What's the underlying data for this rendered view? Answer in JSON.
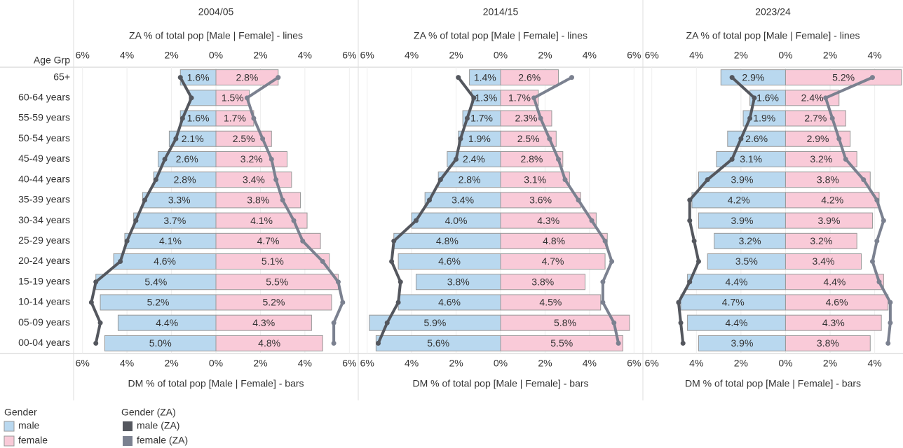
{
  "row_axis": {
    "title": "Age Grp",
    "categories": [
      "65+",
      "60-64 years",
      "55-59 years",
      "50-54 years",
      "45-49 years",
      "40-44 years",
      "35-39 years",
      "30-34 years",
      "25-29 years",
      "20-24 years",
      "15-19 years",
      "10-14 years",
      "05-09 years",
      "00-04 years"
    ]
  },
  "legend": {
    "bars_title": "Gender",
    "lines_title": "Gender (ZA)"
  },
  "chart_data": [
    {
      "type": "pyramid",
      "title": "2004/05",
      "top_axis_label": "ZA % of total pop [Male | Female] - lines",
      "bottom_axis_label": "DM % of total pop [Male | Female] - bars",
      "xlim": [
        -6.4,
        6.4
      ],
      "grid": true,
      "xticks": [
        {
          "value": -6,
          "label": "6%"
        },
        {
          "value": -4,
          "label": "4%"
        },
        {
          "value": -2,
          "label": "2%"
        },
        {
          "value": 0,
          "label": "0%"
        },
        {
          "value": 2,
          "label": "2%"
        },
        {
          "value": 4,
          "label": "4%"
        },
        {
          "value": 6,
          "label": "6%"
        }
      ],
      "series": [
        {
          "name": "male",
          "type": "bar",
          "side": "left",
          "color": "#b9d8ef",
          "values": [
            1.6,
            1.2,
            1.6,
            2.1,
            2.6,
            2.8,
            3.3,
            3.7,
            4.1,
            4.6,
            5.4,
            5.2,
            4.4,
            5.0
          ],
          "value_labels": [
            "1.6%",
            null,
            "1.6%",
            "2.1%",
            "2.6%",
            "2.8%",
            "3.3%",
            "3.7%",
            "4.1%",
            "4.6%",
            "5.4%",
            "5.2%",
            "4.4%",
            "5.0%"
          ]
        },
        {
          "name": "female",
          "type": "bar",
          "side": "right",
          "color": "#f9cad8",
          "values": [
            2.8,
            1.5,
            1.7,
            2.5,
            3.2,
            3.4,
            3.8,
            4.1,
            4.7,
            5.1,
            5.5,
            5.2,
            4.3,
            4.8
          ],
          "value_labels": [
            "2.8%",
            "1.5%",
            "1.7%",
            "2.5%",
            "3.2%",
            "3.4%",
            "3.8%",
            "4.1%",
            "4.7%",
            "5.1%",
            "5.5%",
            "5.2%",
            "4.3%",
            "4.8%"
          ]
        },
        {
          "name": "male (ZA)",
          "type": "line",
          "side": "left",
          "color": "#54575e",
          "values": [
            1.6,
            1.1,
            1.5,
            1.8,
            2.3,
            2.7,
            3.2,
            3.6,
            4.0,
            4.3,
            5.4,
            5.6,
            5.2,
            5.4
          ]
        },
        {
          "name": "female (ZA)",
          "type": "line",
          "side": "right",
          "color": "#7b8190",
          "values": [
            2.8,
            1.4,
            1.7,
            2.1,
            2.5,
            2.7,
            3.0,
            3.5,
            3.9,
            4.8,
            5.5,
            5.7,
            5.3,
            5.3
          ]
        }
      ]
    },
    {
      "type": "pyramid",
      "title": "2014/15",
      "top_axis_label": "ZA % of total pop [Male | Female] - lines",
      "bottom_axis_label": "DM % of total pop [Male | Female] - bars",
      "xlim": [
        -6.4,
        6.4
      ],
      "grid": true,
      "xticks": [
        {
          "value": -6,
          "label": "6%"
        },
        {
          "value": -4,
          "label": "4%"
        },
        {
          "value": -2,
          "label": "2%"
        },
        {
          "value": 0,
          "label": "0%"
        },
        {
          "value": 2,
          "label": "2%"
        },
        {
          "value": 4,
          "label": "4%"
        },
        {
          "value": 6,
          "label": "6%"
        }
      ],
      "series": [
        {
          "type": "bar",
          "side": "left",
          "color": "#b9d8ef",
          "values": [
            1.4,
            1.3,
            1.7,
            1.9,
            2.4,
            2.8,
            3.4,
            4.0,
            4.8,
            4.6,
            3.8,
            4.6,
            5.9,
            5.6
          ],
          "value_labels": [
            "1.4%",
            "1.3%",
            "1.7%",
            "1.9%",
            "2.4%",
            "2.8%",
            "3.4%",
            "4.0%",
            "4.8%",
            "4.6%",
            "3.8%",
            "4.6%",
            "5.9%",
            "5.6%"
          ]
        },
        {
          "type": "bar",
          "side": "right",
          "color": "#f9cad8",
          "values": [
            2.6,
            1.7,
            2.3,
            2.5,
            2.8,
            3.1,
            3.6,
            4.3,
            4.8,
            4.7,
            3.8,
            4.5,
            5.8,
            5.5
          ],
          "value_labels": [
            "2.6%",
            "1.7%",
            "2.3%",
            "2.5%",
            "2.8%",
            "3.1%",
            "3.6%",
            "4.3%",
            "4.8%",
            "4.7%",
            "3.8%",
            "4.5%",
            "5.8%",
            "5.5%"
          ]
        },
        {
          "type": "line",
          "side": "left",
          "color": "#54575e",
          "values": [
            1.9,
            1.2,
            1.5,
            1.8,
            2.0,
            2.7,
            3.2,
            3.8,
            4.8,
            4.9,
            4.5,
            4.6,
            5.1,
            5.5
          ]
        },
        {
          "type": "line",
          "side": "right",
          "color": "#7b8190",
          "values": [
            3.2,
            1.5,
            1.8,
            2.2,
            2.6,
            2.9,
            3.5,
            4.1,
            4.7,
            5.0,
            4.6,
            4.6,
            5.1,
            5.3
          ]
        }
      ]
    },
    {
      "type": "pyramid",
      "title": "2023/24",
      "top_axis_label": "ZA % of total pop [Male | Female] - lines",
      "bottom_axis_label": "DM % of total pop [Male | Female] - bars",
      "xlim": [
        -6.4,
        5.27
      ],
      "grid": true,
      "xticks": [
        {
          "value": -6,
          "label": "6%"
        },
        {
          "value": -4,
          "label": "4%"
        },
        {
          "value": -2,
          "label": "2%"
        },
        {
          "value": 0,
          "label": "0%"
        },
        {
          "value": 2,
          "label": "2%"
        },
        {
          "value": 4,
          "label": "4%"
        }
      ],
      "series": [
        {
          "type": "bar",
          "side": "left",
          "color": "#b9d8ef",
          "values": [
            2.9,
            1.6,
            1.9,
            2.6,
            3.1,
            3.9,
            4.2,
            3.9,
            3.2,
            3.5,
            4.4,
            4.7,
            4.4,
            3.9
          ],
          "value_labels": [
            "2.9%",
            "1.6%",
            "1.9%",
            "2.6%",
            "3.1%",
            "3.9%",
            "4.2%",
            "3.9%",
            "3.2%",
            "3.5%",
            "4.4%",
            "4.7%",
            "4.4%",
            "3.9%"
          ]
        },
        {
          "type": "bar",
          "side": "right",
          "color": "#f9cad8",
          "values": [
            5.2,
            2.4,
            2.7,
            2.9,
            3.2,
            3.8,
            4.2,
            3.9,
            3.2,
            3.4,
            4.4,
            4.6,
            4.3,
            3.8
          ],
          "value_labels": [
            "5.2%",
            "2.4%",
            "2.7%",
            "2.9%",
            "3.2%",
            "3.8%",
            "4.2%",
            "3.9%",
            "3.2%",
            "3.4%",
            "4.4%",
            "4.6%",
            "4.3%",
            "3.8%"
          ]
        },
        {
          "type": "line",
          "side": "left",
          "color": "#54575e",
          "values": [
            2.4,
            1.4,
            1.6,
            2.0,
            2.4,
            3.5,
            4.3,
            4.3,
            4.1,
            3.9,
            4.3,
            4.8,
            4.7,
            4.6
          ]
        },
        {
          "type": "line",
          "side": "right",
          "color": "#7b8190",
          "values": [
            3.9,
            1.8,
            2.1,
            2.4,
            2.7,
            3.5,
            4.1,
            4.4,
            4.1,
            3.9,
            4.2,
            4.7,
            4.7,
            4.6
          ]
        }
      ]
    }
  ]
}
